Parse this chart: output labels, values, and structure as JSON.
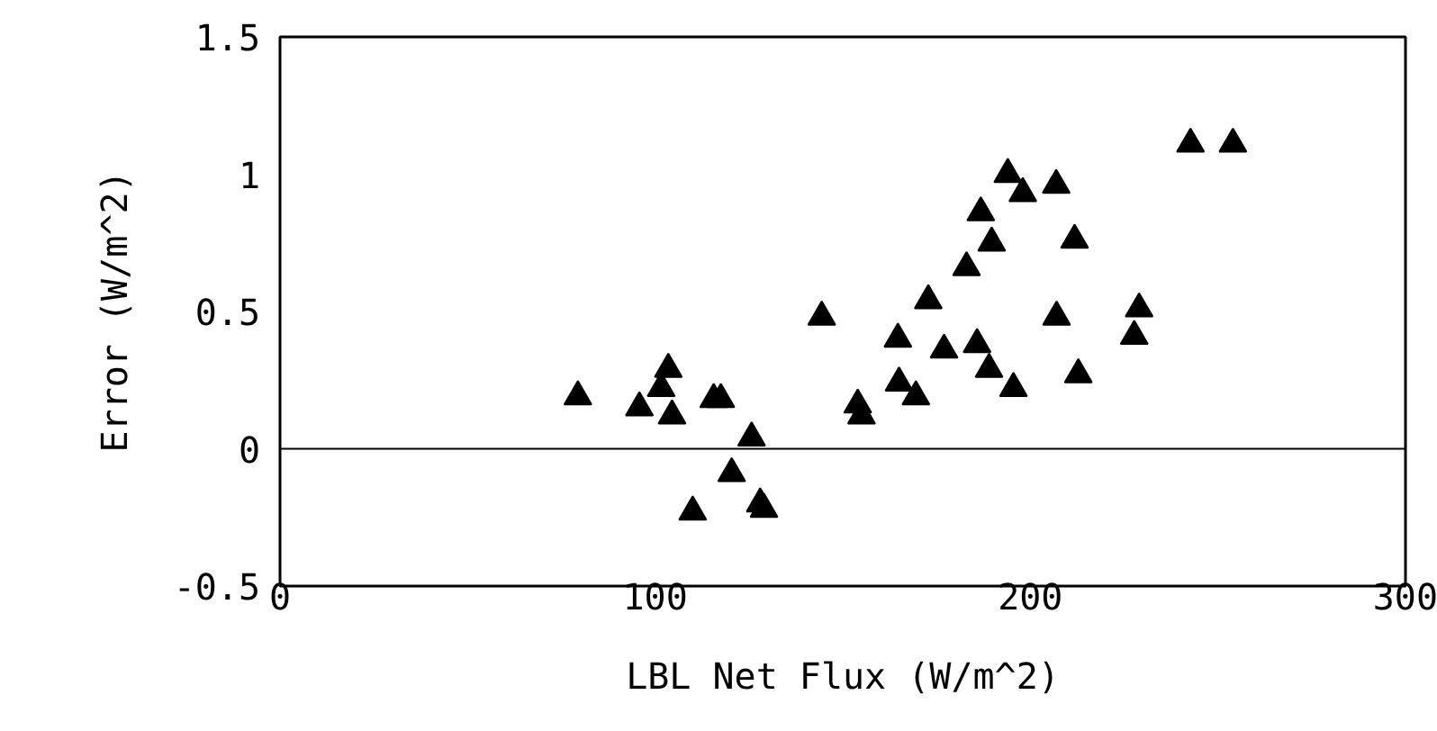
{
  "chart_data": {
    "type": "scatter",
    "xlabel": "LBL Net Flux (W/m^2)",
    "ylabel": "Error (W/m^2)",
    "x": [
      79.4,
      95.8,
      101.6,
      103.5,
      104.5,
      110,
      115.6,
      117.5,
      120.4,
      125.7,
      128,
      129,
      144.4,
      154,
      155,
      164.7,
      165,
      169.5,
      172.8,
      177,
      183,
      185.8,
      186.8,
      189,
      189.7,
      194,
      195.5,
      198,
      206.9,
      207,
      211.8,
      212.8,
      227.7,
      229,
      242.7,
      254
    ],
    "values": [
      0.19,
      0.15,
      0.22,
      0.29,
      0.12,
      -0.23,
      0.18,
      0.18,
      -0.09,
      0.04,
      -0.2,
      -0.22,
      0.48,
      0.16,
      0.12,
      0.4,
      0.24,
      0.19,
      0.54,
      0.36,
      0.66,
      0.38,
      0.86,
      0.29,
      0.75,
      1.0,
      0.22,
      0.93,
      0.96,
      0.48,
      0.76,
      0.27,
      0.41,
      0.51,
      1.11,
      1.11
    ],
    "color": "#000000",
    "marker": "triangle",
    "xlim": [
      0,
      300
    ],
    "xticks": [
      0,
      100,
      200,
      300
    ],
    "ylim": [
      -0.5,
      1.5
    ],
    "yticks": [
      -0.5,
      0,
      0.5,
      1,
      1.5
    ],
    "ref_lines": [
      {
        "axis": "y",
        "value": 0,
        "color": "#000000"
      }
    ]
  }
}
